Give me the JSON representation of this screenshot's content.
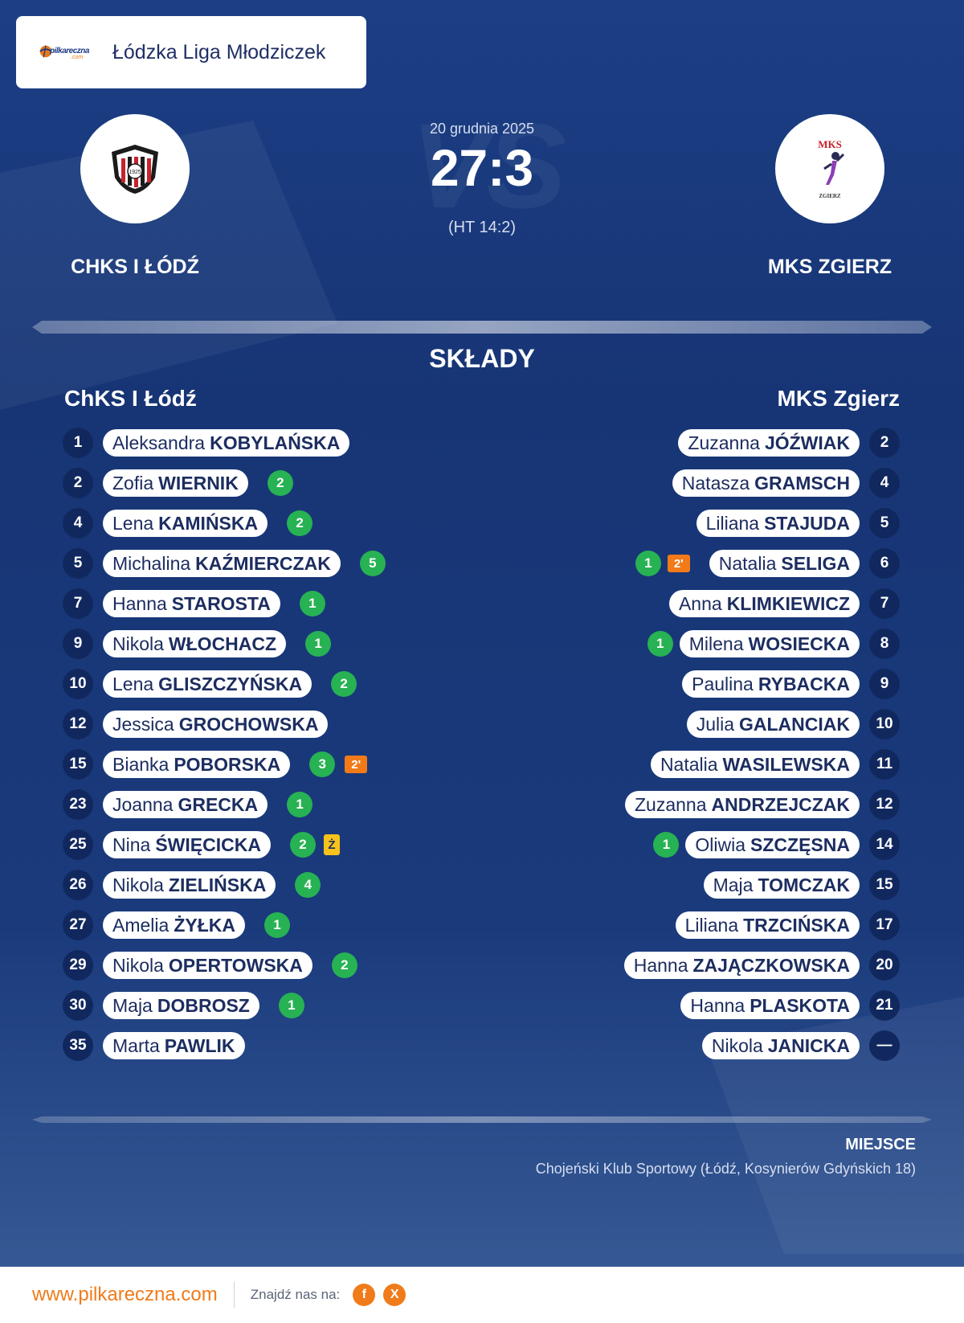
{
  "league": {
    "name": "Łódzka Liga Młodziczek",
    "logo_text": "pilkareczna",
    "logo_suffix": ".com"
  },
  "match": {
    "date": "20 grudnia 2025",
    "score": "27:3",
    "half_time": "(HT 14:2)",
    "home_team": "CHKS I ŁÓDŹ",
    "away_team": "MKS ZGIERZ",
    "home_crest_text": "1925",
    "away_crest_top": "MKS",
    "away_crest_bottom": "ZGIERZ"
  },
  "lineups": {
    "title": "SKŁADY",
    "home_title": "ChKS I Łódź",
    "away_title": "MKS Zgierz",
    "home": [
      {
        "num": "1",
        "first": "Aleksandra",
        "last": "KOBYLAŃSKA",
        "goals": "",
        "penalty": "",
        "yellow": ""
      },
      {
        "num": "2",
        "first": "Zofia",
        "last": "WIERNIK",
        "goals": "2",
        "penalty": "",
        "yellow": ""
      },
      {
        "num": "4",
        "first": "Lena",
        "last": "KAMIŃSKA",
        "goals": "2",
        "penalty": "",
        "yellow": ""
      },
      {
        "num": "5",
        "first": "Michalina",
        "last": "KAŹMIERCZAK",
        "goals": "5",
        "penalty": "",
        "yellow": ""
      },
      {
        "num": "7",
        "first": "Hanna",
        "last": "STAROSTA",
        "goals": "1",
        "penalty": "",
        "yellow": ""
      },
      {
        "num": "9",
        "first": "Nikola",
        "last": "WŁOCHACZ",
        "goals": "1",
        "penalty": "",
        "yellow": ""
      },
      {
        "num": "10",
        "first": "Lena",
        "last": "GLISZCZYŃSKA",
        "goals": "2",
        "penalty": "",
        "yellow": ""
      },
      {
        "num": "12",
        "first": "Jessica",
        "last": "GROCHOWSKA",
        "goals": "",
        "penalty": "",
        "yellow": ""
      },
      {
        "num": "15",
        "first": "Bianka",
        "last": "POBORSKA",
        "goals": "3",
        "penalty": "2'",
        "yellow": ""
      },
      {
        "num": "23",
        "first": "Joanna",
        "last": "GRECKA",
        "goals": "1",
        "penalty": "",
        "yellow": ""
      },
      {
        "num": "25",
        "first": "Nina",
        "last": "ŚWIĘCICKA",
        "goals": "2",
        "penalty": "",
        "yellow": "Ż"
      },
      {
        "num": "26",
        "first": "Nikola",
        "last": "ZIELIŃSKA",
        "goals": "4",
        "penalty": "",
        "yellow": ""
      },
      {
        "num": "27",
        "first": "Amelia",
        "last": "ŻYŁKA",
        "goals": "1",
        "penalty": "",
        "yellow": ""
      },
      {
        "num": "29",
        "first": "Nikola",
        "last": "OPERTOWSKA",
        "goals": "2",
        "penalty": "",
        "yellow": ""
      },
      {
        "num": "30",
        "first": "Maja",
        "last": "DOBROSZ",
        "goals": "1",
        "penalty": "",
        "yellow": ""
      },
      {
        "num": "35",
        "first": "Marta",
        "last": "PAWLIK",
        "goals": "",
        "penalty": "",
        "yellow": ""
      }
    ],
    "away": [
      {
        "num": "2",
        "first": "Zuzanna",
        "last": "JÓŹWIAK",
        "goals": "",
        "penalty": ""
      },
      {
        "num": "4",
        "first": "Natasza",
        "last": "GRAMSCH",
        "goals": "",
        "penalty": ""
      },
      {
        "num": "5",
        "first": "Liliana",
        "last": "STAJUDA",
        "goals": "",
        "penalty": ""
      },
      {
        "num": "6",
        "first": "Natalia",
        "last": "SELIGA",
        "goals": "1",
        "penalty": "2'"
      },
      {
        "num": "7",
        "first": "Anna",
        "last": "KLIMKIEWICZ",
        "goals": "",
        "penalty": ""
      },
      {
        "num": "8",
        "first": "Milena",
        "last": "WOSIECKA",
        "goals": "1",
        "penalty": ""
      },
      {
        "num": "9",
        "first": "Paulina",
        "last": "RYBACKA",
        "goals": "",
        "penalty": ""
      },
      {
        "num": "10",
        "first": "Julia",
        "last": "GALANCIAK",
        "goals": "",
        "penalty": ""
      },
      {
        "num": "11",
        "first": "Natalia",
        "last": "WASILEWSKA",
        "goals": "",
        "penalty": ""
      },
      {
        "num": "12",
        "first": "Zuzanna",
        "last": "ANDRZEJCZAK",
        "goals": "",
        "penalty": ""
      },
      {
        "num": "14",
        "first": "Oliwia",
        "last": "SZCZĘSNA",
        "goals": "1",
        "penalty": ""
      },
      {
        "num": "15",
        "first": "Maja",
        "last": "TOMCZAK",
        "goals": "",
        "penalty": ""
      },
      {
        "num": "17",
        "first": "Liliana",
        "last": "TRZCIŃSKA",
        "goals": "",
        "penalty": ""
      },
      {
        "num": "20",
        "first": "Hanna",
        "last": "ZAJĄCZKOWSKA",
        "goals": "",
        "penalty": ""
      },
      {
        "num": "21",
        "first": "Hanna",
        "last": "PLASKOTA",
        "goals": "",
        "penalty": ""
      },
      {
        "num": "—",
        "first": "Nikola",
        "last": "JANICKA",
        "goals": "",
        "penalty": ""
      }
    ]
  },
  "venue": {
    "title": "MIEJSCE",
    "text": "Chojeński Klub Sportowy (Łódź, Kosynierów Gdyńskich 18)"
  },
  "footer": {
    "url": "www.pilkareczna.com",
    "find_us": "Znajdź nas na:",
    "social": [
      {
        "icon": "facebook-icon",
        "glyph": "f"
      },
      {
        "icon": "x-icon",
        "glyph": "X"
      }
    ]
  },
  "colors": {
    "accent": "#f07b1b",
    "goal": "#27b253",
    "penalty": "#f27a19",
    "yellow_card": "#f9c21b",
    "navy": "#11285f"
  }
}
